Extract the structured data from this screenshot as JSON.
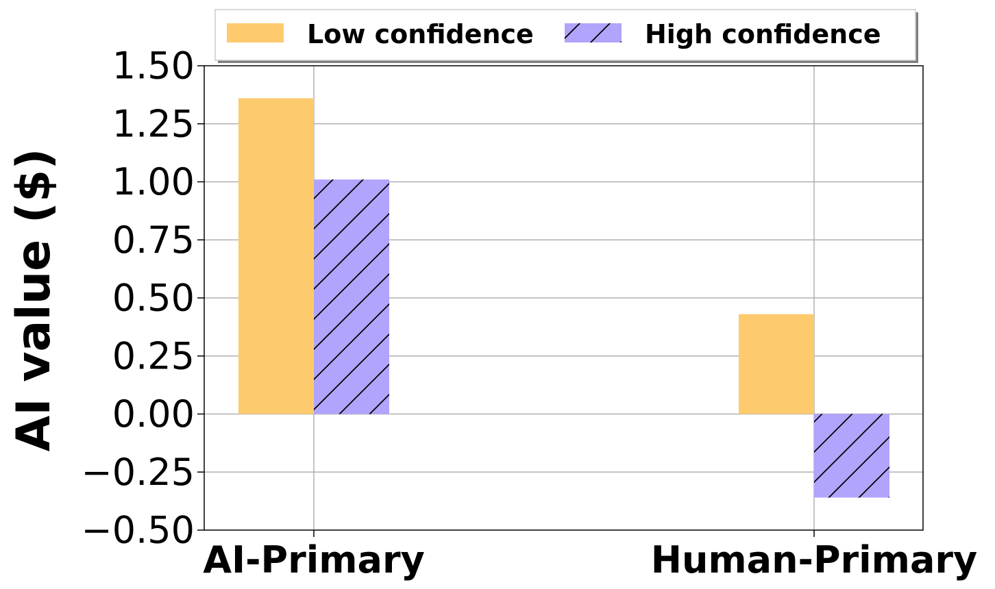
{
  "chart_data": {
    "type": "bar",
    "categories": [
      "AI-Primary",
      "Human-Primary"
    ],
    "series": [
      {
        "name": "Low confidence",
        "values": [
          1.36,
          0.43
        ],
        "color": "#FDCA6E",
        "hatch": "none"
      },
      {
        "name": "High confidence",
        "values": [
          1.01,
          -0.36
        ],
        "color": "#B0A4FC",
        "hatch": "diagonal"
      }
    ],
    "title": "",
    "xlabel": "",
    "ylabel": "AI value ($)",
    "ylim": [
      -0.5,
      1.5
    ],
    "yticks": [
      -0.5,
      -0.25,
      0.0,
      0.25,
      0.5,
      0.75,
      1.0,
      1.25,
      1.5
    ],
    "ytick_labels": [
      "−0.50",
      "−0.25",
      "0.00",
      "0.25",
      "0.50",
      "0.75",
      "1.00",
      "1.25",
      "1.50"
    ],
    "grid": true,
    "legend_position": "top-center"
  }
}
